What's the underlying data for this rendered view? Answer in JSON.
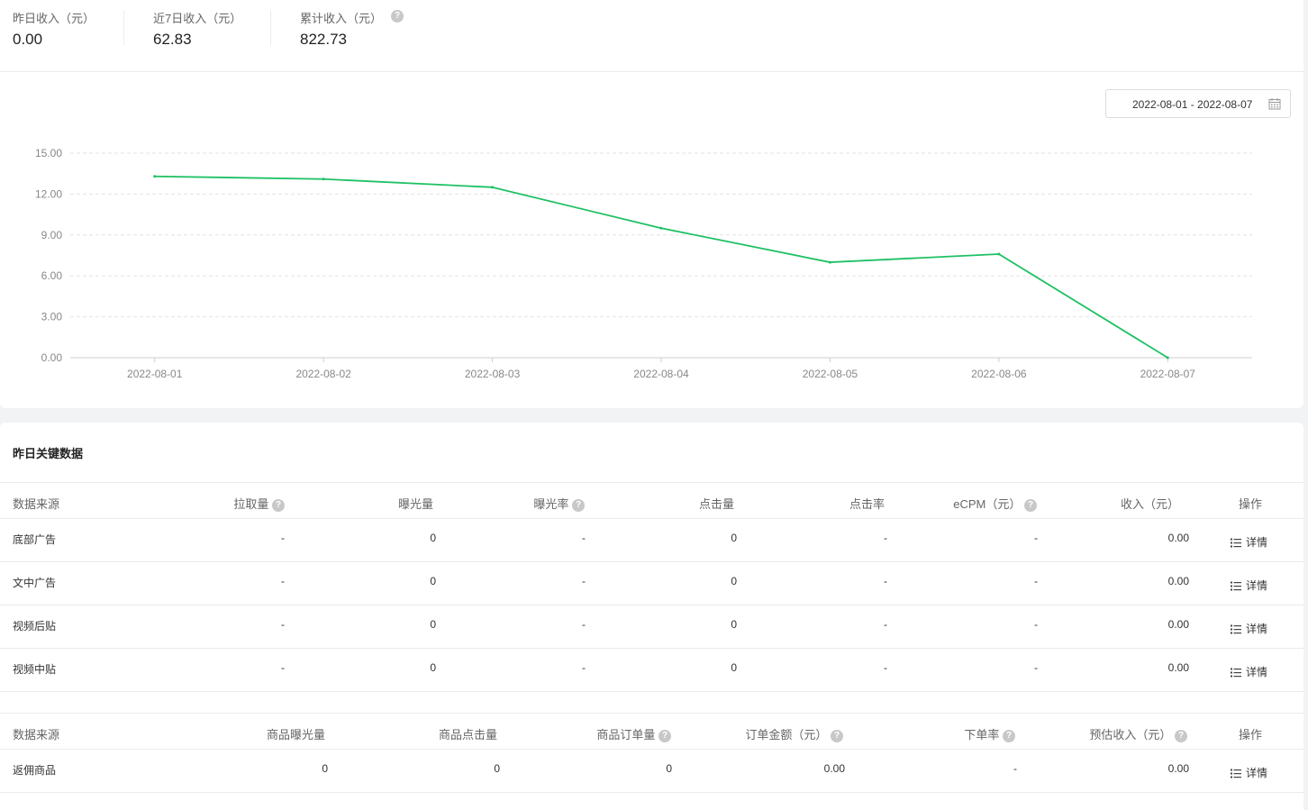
{
  "summary": {
    "yesterday_label": "昨日收入（元）",
    "yesterday_value": "0.00",
    "week_label": "近7日收入（元）",
    "week_value": "62.83",
    "total_label": "累计收入（元）",
    "total_value": "822.73"
  },
  "date_range": "2022-08-01 - 2022-08-07",
  "chart_data": {
    "type": "line",
    "x": [
      "2022-08-01",
      "2022-08-02",
      "2022-08-03",
      "2022-08-04",
      "2022-08-05",
      "2022-08-06",
      "2022-08-07"
    ],
    "series": [
      {
        "values": [
          13.3,
          13.1,
          12.5,
          9.5,
          7.0,
          7.6,
          0.0
        ],
        "color": "#1ec163"
      }
    ],
    "yticks": [
      "0.00",
      "3.00",
      "6.00",
      "9.00",
      "12.00",
      "15.00"
    ],
    "ylim": [
      0,
      15
    ],
    "grid": true,
    "legend": false
  },
  "section_title": "昨日关键数据",
  "ad_table": {
    "headers": [
      "数据来源",
      "拉取量",
      "曝光量",
      "曝光率",
      "点击量",
      "点击率",
      "eCPM（元）",
      "收入（元）",
      "操作"
    ],
    "rows": [
      {
        "source": "底部广告",
        "pull": "-",
        "exposure": "0",
        "exposure_rate": "-",
        "clicks": "0",
        "ctr": "-",
        "ecpm": "-",
        "income": "0.00",
        "action": "详情"
      },
      {
        "source": "文中广告",
        "pull": "-",
        "exposure": "0",
        "exposure_rate": "-",
        "clicks": "0",
        "ctr": "-",
        "ecpm": "-",
        "income": "0.00",
        "action": "详情"
      },
      {
        "source": "视频后贴",
        "pull": "-",
        "exposure": "0",
        "exposure_rate": "-",
        "clicks": "0",
        "ctr": "-",
        "ecpm": "-",
        "income": "0.00",
        "action": "详情"
      },
      {
        "source": "视频中贴",
        "pull": "-",
        "exposure": "0",
        "exposure_rate": "-",
        "clicks": "0",
        "ctr": "-",
        "ecpm": "-",
        "income": "0.00",
        "action": "详情"
      }
    ]
  },
  "goods_table": {
    "headers": [
      "数据来源",
      "商品曝光量",
      "商品点击量",
      "商品订单量",
      "订单金额（元）",
      "下单率",
      "预估收入（元）",
      "操作"
    ],
    "rows": [
      {
        "source": "返佣商品",
        "exposure": "0",
        "clicks": "0",
        "orders": "0",
        "amount": "0.00",
        "order_rate": "-",
        "est_income": "0.00",
        "action": "详情"
      }
    ]
  },
  "colors": {
    "accent": "#1ec163",
    "help_icon": "#c8c8c8"
  }
}
